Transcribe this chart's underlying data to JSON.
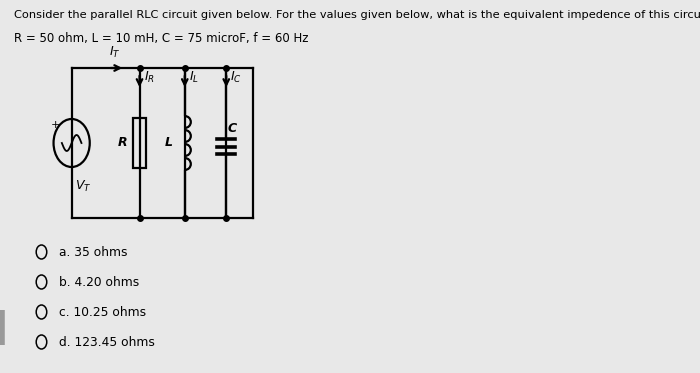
{
  "title_text": "Consider the parallel RLC circuit given below. For the values given below, what is the equivalent impedence of this circuit?",
  "params_text": "R = 50 ohm, L = 10 mH, C = 75 microF, f = 60 Hz",
  "options": [
    "a. 35 ohms",
    "b. 4.20 ohms",
    "c. 10.25 ohms",
    "d. 123.45 ohms"
  ],
  "bg_color": "#e8e8e8",
  "text_color": "#000000",
  "lc": "#000000",
  "title_fontsize": 8.2,
  "params_fontsize": 8.5,
  "options_fontsize": 8.8,
  "label_fontsize": 9.0
}
